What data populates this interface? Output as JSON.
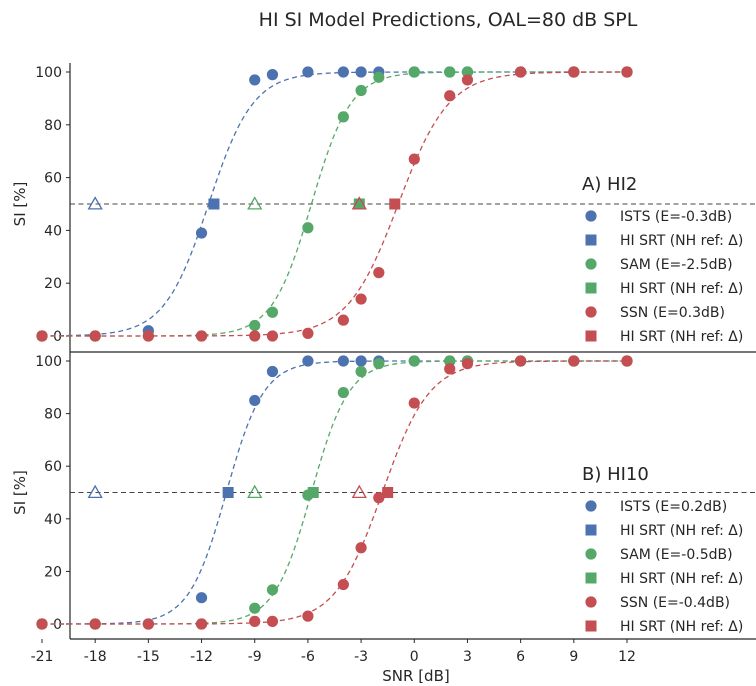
{
  "title": "HI SI Model Predictions, OAL=80 dB SPL",
  "colors": {
    "ISTS": "#4c72b0",
    "SAM": "#55a868",
    "SSN": "#c44e52",
    "ref_line": "#444444",
    "axis": "#262626"
  },
  "chart_data": [
    {
      "type": "scatter",
      "panel_label": "A) HI2",
      "xlabel": "",
      "ylabel": "SI [%]",
      "xlim": [
        -22.5,
        14.5
      ],
      "ylim": [
        -3,
        101
      ],
      "yticks": [
        0,
        20,
        40,
        60,
        80,
        100
      ],
      "ref_line_y": 50,
      "legend_position": "right",
      "series": [
        {
          "name": "ISTS",
          "legend_label": "ISTS (E=-0.3dB)",
          "color_key": "ISTS",
          "points": [
            [
              -21,
              0
            ],
            [
              -18,
              0
            ],
            [
              -15,
              2
            ],
            [
              -12,
              39
            ],
            [
              -9,
              97
            ],
            [
              -8,
              99
            ],
            [
              -6,
              100
            ],
            [
              -4,
              100
            ],
            [
              -3,
              100
            ],
            [
              -2,
              100
            ],
            [
              0,
              100
            ],
            [
              2,
              100
            ],
            [
              3,
              100
            ],
            [
              6,
              100
            ],
            [
              9,
              100
            ],
            [
              12,
              100
            ]
          ],
          "fit": {
            "midpoint": -11.6,
            "slope": 0.8
          },
          "srt_label": "HI SRT (NH ref: Δ)",
          "hi_srt": -11.3,
          "nh_ref": -18
        },
        {
          "name": "SAM",
          "legend_label": "SAM (E=-2.5dB)",
          "color_key": "SAM",
          "points": [
            [
              -21,
              0
            ],
            [
              -18,
              0
            ],
            [
              -15,
              0
            ],
            [
              -12,
              0
            ],
            [
              -9,
              4
            ],
            [
              -8,
              9
            ],
            [
              -6,
              41
            ],
            [
              -4,
              83
            ],
            [
              -3,
              93
            ],
            [
              -2,
              98
            ],
            [
              0,
              100
            ],
            [
              2,
              100
            ],
            [
              3,
              100
            ],
            [
              6,
              100
            ],
            [
              9,
              100
            ],
            [
              12,
              100
            ]
          ],
          "fit": {
            "midpoint": -5.8,
            "slope": 0.9
          },
          "srt_label": "HI SRT (NH ref: Δ)",
          "hi_srt": -3.1,
          "nh_ref": -9
        },
        {
          "name": "SSN",
          "legend_label": "SSN (E=0.3dB)",
          "color_key": "SSN",
          "points": [
            [
              -21,
              0
            ],
            [
              -18,
              0
            ],
            [
              -15,
              0
            ],
            [
              -12,
              0
            ],
            [
              -9,
              0
            ],
            [
              -8,
              0
            ],
            [
              -6,
              1
            ],
            [
              -4,
              6
            ],
            [
              -3,
              14
            ],
            [
              -2,
              24
            ],
            [
              0,
              67
            ],
            [
              2,
              91
            ],
            [
              3,
              97
            ],
            [
              6,
              100
            ],
            [
              9,
              100
            ],
            [
              12,
              100
            ]
          ],
          "fit": {
            "midpoint": -0.9,
            "slope": 0.7
          },
          "srt_label": "HI SRT (NH ref: Δ)",
          "hi_srt": -1.1,
          "nh_ref": -3.1
        }
      ]
    },
    {
      "type": "scatter",
      "panel_label": "B) HI10",
      "xlabel": "SNR [dB]",
      "ylabel": "SI [%]",
      "xlim": [
        -22.5,
        14.5
      ],
      "ylim": [
        -3,
        101
      ],
      "xticks": [
        -21,
        -18,
        -15,
        -12,
        -9,
        -6,
        -3,
        0,
        3,
        6,
        9,
        12
      ],
      "yticks": [
        0,
        20,
        40,
        60,
        80,
        100
      ],
      "ref_line_y": 50,
      "legend_position": "right",
      "series": [
        {
          "name": "ISTS",
          "legend_label": "ISTS (E=0.2dB)",
          "color_key": "ISTS",
          "points": [
            [
              -21,
              0
            ],
            [
              -18,
              0
            ],
            [
              -15,
              0
            ],
            [
              -12,
              10
            ],
            [
              -9,
              85
            ],
            [
              -8,
              96
            ],
            [
              -6,
              100
            ],
            [
              -4,
              100
            ],
            [
              -3,
              100
            ],
            [
              -2,
              100
            ],
            [
              0,
              100
            ],
            [
              2,
              100
            ],
            [
              3,
              100
            ],
            [
              6,
              100
            ],
            [
              9,
              100
            ],
            [
              12,
              100
            ]
          ],
          "fit": {
            "midpoint": -10.6,
            "slope": 0.95
          },
          "srt_label": "HI SRT (NH ref: Δ)",
          "hi_srt": -10.5,
          "nh_ref": -18
        },
        {
          "name": "SAM",
          "legend_label": "SAM (E=-0.5dB)",
          "color_key": "SAM",
          "points": [
            [
              -21,
              0
            ],
            [
              -18,
              0
            ],
            [
              -15,
              0
            ],
            [
              -12,
              0
            ],
            [
              -9,
              6
            ],
            [
              -8,
              13
            ],
            [
              -6,
              49
            ],
            [
              -4,
              88
            ],
            [
              -3,
              96
            ],
            [
              -2,
              99
            ],
            [
              0,
              100
            ],
            [
              2,
              100
            ],
            [
              3,
              100
            ],
            [
              6,
              100
            ],
            [
              9,
              100
            ],
            [
              12,
              100
            ]
          ],
          "fit": {
            "midpoint": -5.8,
            "slope": 0.95
          },
          "srt_label": "HI SRT (NH ref: Δ)",
          "hi_srt": -5.7,
          "nh_ref": -9
        },
        {
          "name": "SSN",
          "legend_label": "SSN (E=-0.4dB)",
          "color_key": "SSN",
          "points": [
            [
              -21,
              0
            ],
            [
              -18,
              0
            ],
            [
              -15,
              0
            ],
            [
              -12,
              0
            ],
            [
              -9,
              1
            ],
            [
              -8,
              1
            ],
            [
              -6,
              3
            ],
            [
              -4,
              15
            ],
            [
              -3,
              29
            ],
            [
              -2,
              48
            ],
            [
              0,
              84
            ],
            [
              2,
              97
            ],
            [
              3,
              99
            ],
            [
              6,
              100
            ],
            [
              9,
              100
            ],
            [
              12,
              100
            ]
          ],
          "fit": {
            "midpoint": -1.8,
            "slope": 0.75
          },
          "srt_label": "HI SRT (NH ref: Δ)",
          "hi_srt": -1.5,
          "nh_ref": -3.1
        }
      ]
    }
  ]
}
